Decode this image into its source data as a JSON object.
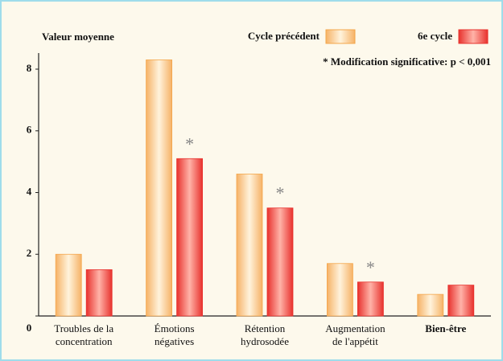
{
  "chart_data": {
    "type": "bar",
    "y_label": "Valeur moyenne",
    "note": "* Modification significative: p < 0,001",
    "categories": [
      [
        "Troubles de la",
        "concentration"
      ],
      [
        "Émotions",
        "négatives"
      ],
      [
        "Rétention",
        "hydrosodée"
      ],
      [
        "Augmentation",
        "de l'appétit"
      ],
      [
        "Bien-être"
      ]
    ],
    "series": [
      {
        "name": "Cycle précédent",
        "color": "#f4a64a",
        "values": [
          2.0,
          8.3,
          4.6,
          1.7,
          0.7
        ]
      },
      {
        "name": "6e cycle",
        "color": "#e8322e",
        "values": [
          1.5,
          5.1,
          3.5,
          1.1,
          1.0
        ]
      }
    ],
    "significant": [
      false,
      true,
      true,
      true,
      false
    ],
    "significance_marker": "*",
    "ylim": [
      0,
      8
    ],
    "yticks": [
      0,
      2,
      4,
      6,
      8
    ]
  }
}
